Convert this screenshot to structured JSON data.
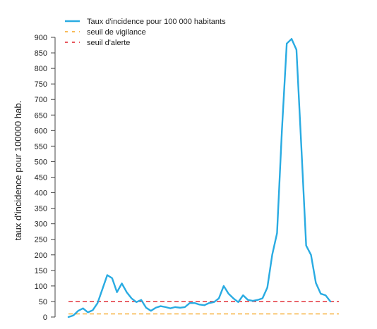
{
  "chart_data": {
    "type": "line",
    "ylabel": "taux d'incidence pour 100000 hab.",
    "xlabel": "",
    "ylim": [
      0,
      900
    ],
    "yticks": [
      0,
      50,
      100,
      150,
      200,
      250,
      300,
      350,
      400,
      450,
      500,
      550,
      600,
      650,
      700,
      750,
      800,
      850,
      900
    ],
    "grid": false,
    "legend_position": "top-left",
    "series": [
      {
        "name": "Taux d'incidence pour 100 000 habitants",
        "color": "#29ABE2",
        "style": "solid",
        "values": [
          0,
          5,
          20,
          28,
          15,
          22,
          45,
          90,
          135,
          125,
          80,
          108,
          80,
          60,
          48,
          55,
          30,
          20,
          30,
          35,
          32,
          28,
          32,
          30,
          32,
          45,
          45,
          40,
          38,
          45,
          48,
          60,
          100,
          75,
          60,
          48,
          70,
          55,
          52,
          55,
          60,
          95,
          200,
          270,
          600,
          880,
          895,
          860,
          550,
          230,
          200,
          110,
          75,
          70,
          50
        ]
      },
      {
        "name": "seuil de vigilance",
        "color": "#F5A623",
        "style": "dashed",
        "constant": 10
      },
      {
        "name": "seuil d'alerte",
        "color": "#E0202A",
        "style": "dashed",
        "constant": 50
      }
    ]
  }
}
